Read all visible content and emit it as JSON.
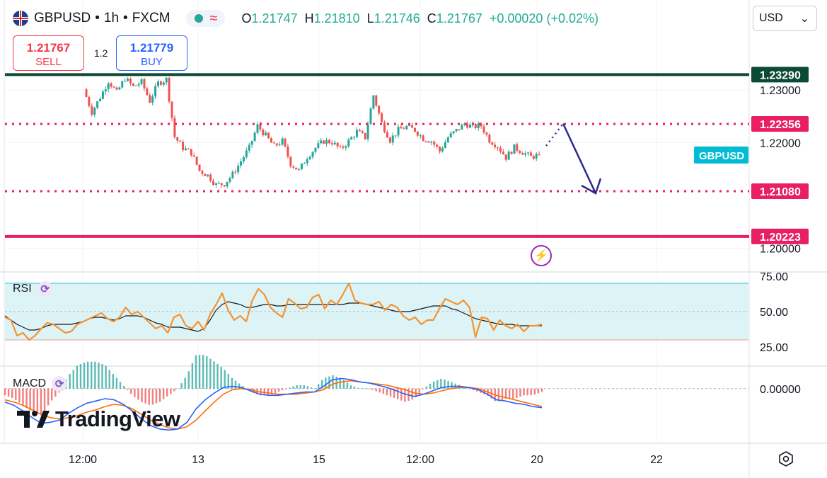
{
  "header": {
    "symbol": "GBPUSD",
    "sep1": "•",
    "interval": "1h",
    "sep2": "•",
    "exchange": "FXCM",
    "open_label": "O",
    "open": "1.21747",
    "high_label": "H",
    "high": "1.21810",
    "low_label": "L",
    "low": "1.21746",
    "close_label": "C",
    "close": "1.21767",
    "change": "+0.00020 (+0.02%)"
  },
  "trade": {
    "sell_price": "1.21767",
    "sell_label": "SELL",
    "buy_price": "1.21779",
    "buy_label": "BUY",
    "spread": "1.2"
  },
  "currency_select": {
    "value": "USD",
    "arrow": "⌄"
  },
  "symbol_tag": "GBPUSD",
  "indicators": {
    "rsi_label": "RSI",
    "macd_label": "MACD"
  },
  "logo_text": "TradingView",
  "colors": {
    "up": "#26a69a",
    "down": "#ef5350",
    "dark_green_level": "#0b4a36",
    "pink_level": "#e91e63",
    "arrow": "#2b2a8a",
    "rsi": "#f5922f",
    "macd": "#2962ff",
    "signal": "#ff6d00",
    "rsi_band": "#ddf4f7"
  },
  "chart_data": [
    {
      "type": "candlestick",
      "title": "GBPUSD • 1h • FXCM",
      "price_ylim": [
        1.1955,
        1.241
      ],
      "price_ticks": [
        "1.23000",
        "1.22000",
        "1.20000"
      ],
      "x_ticks": [
        "12:00",
        "13",
        "15",
        "12:00",
        "20",
        "22"
      ],
      "levels": [
        {
          "value": 1.2329,
          "label": "1.23290",
          "style": "solid",
          "color": "#0b4a36"
        },
        {
          "value": 1.22356,
          "label": "1.22356",
          "style": "dotted",
          "color": "#e91e63"
        },
        {
          "value": 1.2108,
          "label": "1.21080",
          "style": "dotted",
          "color": "#e91e63"
        },
        {
          "value": 1.20223,
          "label": "1.20223",
          "style": "solid",
          "color": "#e91e63"
        }
      ],
      "last_price": 1.21767,
      "series": [
        {
          "name": "GBPUSD",
          "close_path": [
            1.2301,
            1.2258,
            1.2286,
            1.2317,
            1.2295,
            1.2322,
            1.2306,
            1.2315,
            1.2279,
            1.2313,
            1.232,
            1.2211,
            1.219,
            1.2181,
            1.2147,
            1.2138,
            1.212,
            1.2122,
            1.214,
            1.2165,
            1.219,
            1.2232,
            1.2213,
            1.2193,
            1.2203,
            1.216,
            1.2147,
            1.2173,
            1.219,
            1.2203,
            1.2201,
            1.2187,
            1.2203,
            1.2221,
            1.221,
            1.229,
            1.2237,
            1.2205,
            1.2224,
            1.223,
            1.2224,
            1.2208,
            1.2203,
            1.2184,
            1.221,
            1.2223,
            1.2236,
            1.223,
            1.2232,
            1.2205,
            1.2193,
            1.2172,
            1.2191,
            1.2182,
            1.2173,
            1.21767
          ]
        }
      ],
      "projection": {
        "from": 1.2236,
        "to": 1.2108
      }
    },
    {
      "type": "line",
      "name": "RSI",
      "ylim": [
        20,
        75
      ],
      "ticks": [
        "75.00",
        "50.00",
        "25.00"
      ],
      "band": [
        30,
        70
      ],
      "midline": 50,
      "series": [
        {
          "name": "RSI",
          "values": [
            46,
            44,
            33,
            35,
            30,
            33,
            38,
            42,
            41,
            38,
            35,
            36,
            41,
            43,
            45,
            47,
            49,
            45,
            43,
            46,
            53,
            48,
            50,
            46,
            42,
            38,
            40,
            35,
            46,
            48,
            40,
            38,
            43,
            37,
            48,
            55,
            63,
            51,
            44,
            47,
            43,
            58,
            66,
            62,
            53,
            49,
            46,
            59,
            56,
            52,
            53,
            60,
            62,
            52,
            58,
            55,
            62,
            70,
            58,
            56,
            55,
            55,
            57,
            51,
            55,
            53,
            47,
            44,
            46,
            41,
            44,
            44,
            52,
            59,
            57,
            55,
            58,
            53,
            32,
            46,
            45,
            37,
            44,
            40,
            38,
            41,
            36,
            40,
            40,
            41
          ]
        },
        {
          "name": "RSI MA",
          "values": [
            47,
            44,
            41,
            39,
            37,
            37,
            38,
            40,
            41,
            41,
            41,
            41,
            42,
            43,
            45,
            46,
            46,
            45,
            44,
            45,
            47,
            47,
            47,
            46,
            44,
            42,
            41,
            39,
            39,
            39,
            38,
            37,
            36,
            38,
            44,
            51,
            55,
            57,
            56,
            55,
            53,
            53,
            54,
            55,
            55,
            54,
            54,
            55,
            55,
            55,
            55,
            55,
            55,
            55,
            55,
            55,
            55,
            56,
            56,
            56,
            55,
            54,
            53,
            52,
            51,
            50,
            50,
            50,
            51,
            52,
            53,
            54,
            54,
            54,
            52,
            51,
            49,
            47,
            45,
            44,
            43,
            42,
            41,
            41,
            41,
            40,
            40,
            40,
            40,
            40
          ]
        }
      ]
    },
    {
      "type": "bar",
      "name": "MACD",
      "ylim": [
        -0.0045,
        0.0015
      ],
      "ticks": [
        "0.00000"
      ],
      "series": [
        {
          "name": "MACD",
          "values": [
            -0.0012,
            -0.0015,
            -0.002,
            -0.0026,
            -0.0031,
            -0.003,
            -0.0028,
            -0.0022,
            -0.0017,
            -0.0013,
            -0.0011,
            -0.0009,
            -0.001,
            -0.0014,
            -0.002,
            -0.0027,
            -0.0033,
            -0.0036,
            -0.0037,
            -0.0036,
            -0.003,
            -0.0018,
            -0.001,
            -0.0004,
            0.0001,
            0.0002,
            0.0001,
            -0.0002,
            -0.0005,
            -0.0006,
            -0.0006,
            -0.0005,
            -0.0004,
            -0.0003,
            -0.0003,
            0.0002,
            0.0008,
            0.0009,
            0.0008,
            0.0006,
            0.0005,
            0.0003,
            0.0001,
            -0.0002,
            -0.0005,
            -0.0007,
            -0.0005,
            -0.0002,
            0.0001,
            0.0002,
            0.0002,
            0.0001,
            -0.0001,
            -0.0005,
            -0.001,
            -0.0011,
            -0.0013,
            -0.0014,
            -0.0016,
            -0.0017
          ]
        },
        {
          "name": "Signal",
          "values": [
            -0.001,
            -0.0012,
            -0.0015,
            -0.0019,
            -0.0023,
            -0.0026,
            -0.0027,
            -0.0026,
            -0.0024,
            -0.0021,
            -0.0019,
            -0.0016,
            -0.0014,
            -0.0015,
            -0.0018,
            -0.0023,
            -0.0028,
            -0.0032,
            -0.0035,
            -0.0036,
            -0.0034,
            -0.0028,
            -0.002,
            -0.0012,
            -0.0005,
            -0.0001,
            0.0,
            -0.0001,
            -0.0003,
            -0.0004,
            -0.0005,
            -0.0005,
            -0.0005,
            -0.0004,
            -0.0003,
            -0.0001,
            0.0004,
            0.0006,
            0.0007,
            0.0006,
            0.0005,
            0.0004,
            0.0003,
            0.0001,
            -0.0001,
            -0.0004,
            -0.0005,
            -0.0004,
            -0.0002,
            0.0,
            0.0001,
            0.0001,
            -0.0,
            -0.0003,
            -0.0006,
            -0.0008,
            -0.001,
            -0.0012,
            -0.0014,
            -0.0016
          ]
        }
      ]
    }
  ]
}
